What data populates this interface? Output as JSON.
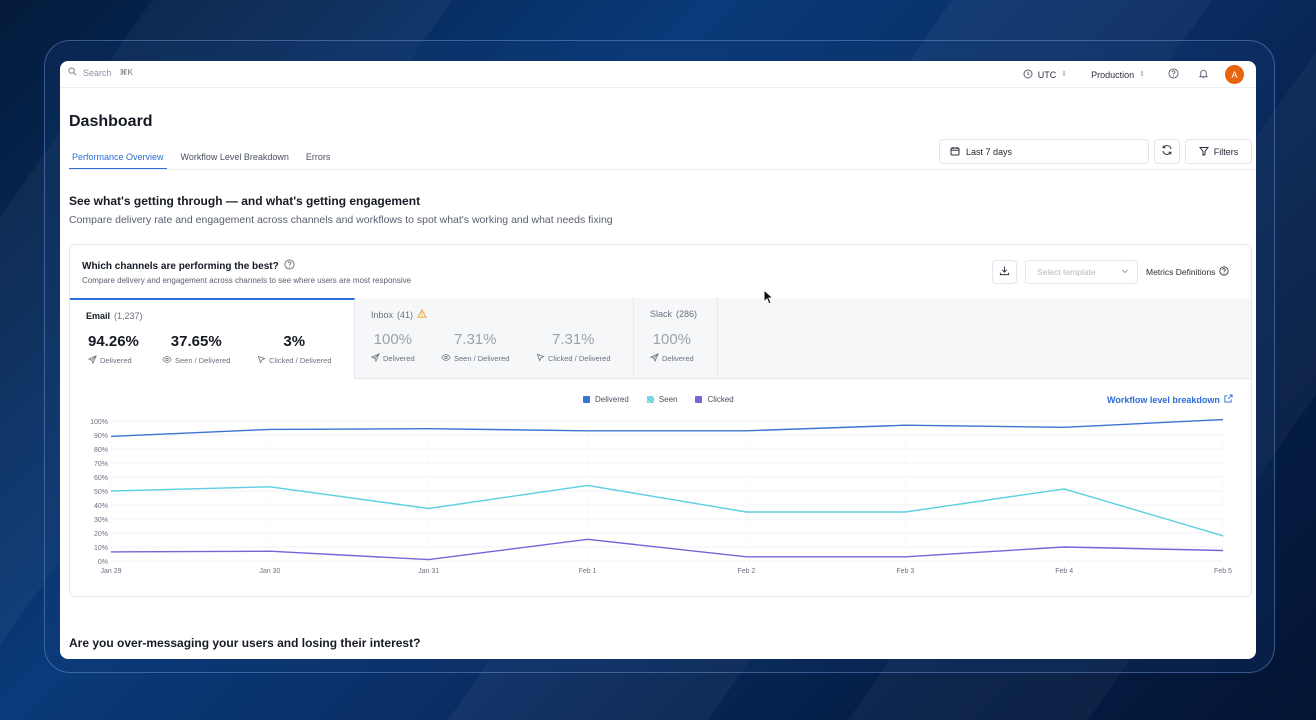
{
  "colors": {
    "accent": "#2d6dd6",
    "delivered": "#3b74d1",
    "seen": "#5ccfe0",
    "clicked": "#7b62d6",
    "avatar": "#e8640c",
    "warning": "#f0a020"
  },
  "topbar": {
    "search_placeholder": "Search",
    "search_shortcut": "⌘K",
    "timezone": "UTC",
    "environment": "Production",
    "avatar_initial": "A"
  },
  "page": {
    "title": "Dashboard",
    "tabs": [
      {
        "label": "Performance Overview",
        "active": true
      },
      {
        "label": "Workflow Level Breakdown",
        "active": false
      },
      {
        "label": "Errors",
        "active": false
      }
    ],
    "date_range": "Last 7 days",
    "filters_label": "Filters"
  },
  "section": {
    "title": "See what's getting through — and what's getting engagement",
    "subtitle": "Compare delivery rate and engagement across channels and workflows to spot what's working and what needs fixing"
  },
  "card": {
    "title": "Which channels are performing the best?",
    "subtitle": "Compare delivery and engagement across channels to see where users are most responsive",
    "template_placeholder": "Select template",
    "metrics_definitions": "Metrics Definitions",
    "workflow_link": "Workflow level breakdown"
  },
  "channels": [
    {
      "name": "Email",
      "count": "(1,237)",
      "active": true,
      "warning": false,
      "stats": [
        {
          "value": "94.26%",
          "label": "Delivered",
          "icon": "send-icon"
        },
        {
          "value": "37.65%",
          "label": "Seen / Delivered",
          "icon": "eye-icon"
        },
        {
          "value": "3%",
          "label": "Clicked / Delivered",
          "icon": "cursor-click-icon"
        }
      ]
    },
    {
      "name": "Inbox",
      "count": "(41)",
      "active": false,
      "warning": true,
      "stats": [
        {
          "value": "100%",
          "label": "Delivered",
          "icon": "send-icon"
        },
        {
          "value": "7.31%",
          "label": "Seen / Delivered",
          "icon": "eye-icon"
        },
        {
          "value": "7.31%",
          "label": "Clicked / Delivered",
          "icon": "cursor-click-icon"
        }
      ]
    },
    {
      "name": "Slack",
      "count": "(286)",
      "active": false,
      "warning": false,
      "stats": [
        {
          "value": "100%",
          "label": "Delivered",
          "icon": "send-icon"
        }
      ]
    }
  ],
  "chart_data": {
    "type": "line",
    "x": [
      "Jan 29",
      "Jan 30",
      "Jan 31",
      "Feb 1",
      "Feb 2",
      "Feb 3",
      "Feb 4",
      "Feb 5"
    ],
    "y_ticks": [
      "0%",
      "10%",
      "20%",
      "30%",
      "40%",
      "50%",
      "60%",
      "70%",
      "80%",
      "90%",
      "100%"
    ],
    "ylim": [
      0,
      100
    ],
    "grid": true,
    "legend": "top-center",
    "series": [
      {
        "name": "Delivered",
        "values": [
          89,
          94,
          94.5,
          93,
          93,
          97,
          95.5,
          101
        ]
      },
      {
        "name": "Seen",
        "values": [
          50,
          53,
          37.5,
          54,
          35,
          35,
          51.5,
          18
        ]
      },
      {
        "name": "Clicked",
        "values": [
          6.5,
          7,
          1,
          15.5,
          3,
          3,
          10,
          7.5
        ]
      }
    ]
  },
  "next_section": {
    "title": "Are you over-messaging your users and losing their interest?"
  }
}
